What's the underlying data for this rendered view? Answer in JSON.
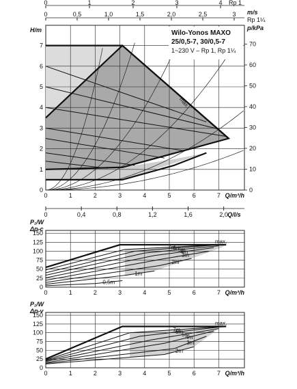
{
  "chart_data": [
    {
      "type": "line",
      "panel": "head",
      "title": [
        "Wilo-Yonos MAXO",
        "25/0,5-7, 30/0,5-7"
      ],
      "subtitle": "1~230 V – Rp 1, Rp 1¼",
      "xlabel": "Q/m³/h",
      "ylabel": "H/m",
      "ylabel_right": "p/kPa",
      "top_axis_1": {
        "unit": "v/m/s",
        "label": "m/s",
        "ticks": [
          "0",
          "1",
          "2",
          "3",
          "4"
        ],
        "extra": "Rp 1"
      },
      "top_axis_2": {
        "unit": "m/s",
        "ticks": [
          "0",
          "0,5",
          "1,0",
          "1,5",
          "2,0",
          "2,5",
          "3"
        ],
        "extra": "Rp 1¼"
      },
      "bottom_axis_2": {
        "unit": "Q/l/s",
        "label": "Q/l/s",
        "ticks": [
          "0",
          "0,4",
          "0,8",
          "1,2",
          "1,6",
          "2,0"
        ]
      },
      "x_ticks": [
        "0",
        "1",
        "2",
        "3",
        "4",
        "5",
        "6",
        "7"
      ],
      "y_ticks": [
        "0",
        "1",
        "2",
        "3",
        "4",
        "5",
        "6",
        "7"
      ],
      "y_right_ticks": [
        "0",
        "10",
        "20",
        "30",
        "40",
        "50",
        "60",
        "70"
      ],
      "xlim": [
        0,
        8
      ],
      "ylim": [
        0,
        7.5
      ],
      "envelope": {
        "x": [
          0,
          0,
          3.1,
          7.4,
          3.1,
          0
        ],
        "y": [
          0.5,
          3.5,
          7.0,
          2.5,
          1.1,
          1.0
        ]
      },
      "light_region": {
        "x": [
          0,
          0,
          3.1,
          3.1,
          0
        ],
        "y": [
          3.5,
          7.0,
          7.0,
          1.1,
          1.0
        ]
      },
      "max_label": "max.",
      "series": [
        {
          "x": [
            0,
            3.1,
            7.4
          ],
          "y": [
            7.0,
            7.0,
            2.5
          ]
        },
        {
          "x": [
            0,
            6.5
          ],
          "y": [
            6.0,
            3.3
          ]
        },
        {
          "x": [
            0,
            7.0
          ],
          "y": [
            5.0,
            2.95
          ]
        },
        {
          "x": [
            0,
            7.3
          ],
          "y": [
            4.0,
            2.6
          ]
        },
        {
          "x": [
            0,
            5.6
          ],
          "y": [
            3.0,
            1.9
          ]
        },
        {
          "x": [
            0,
            4.8
          ],
          "y": [
            2.5,
            1.55
          ]
        },
        {
          "x": [
            0,
            3.6
          ],
          "y": [
            1.8,
            1.2
          ]
        },
        {
          "x": [
            0,
            2.5
          ],
          "y": [
            1.4,
            1.05
          ]
        },
        {
          "x": [
            0,
            3.1,
            5.2,
            6.5
          ],
          "y": [
            0.5,
            0.5,
            1.2,
            1.8
          ]
        }
      ],
      "system_curves": [
        {
          "k": 0.03
        },
        {
          "k": 0.06
        },
        {
          "k": 0.12
        },
        {
          "k": 0.25
        },
        {
          "k": 0.55
        },
        {
          "k": 1.3
        }
      ]
    },
    {
      "type": "line",
      "panel": "power-dp-c",
      "ylabel": [
        "P₁/W",
        "Δp-c"
      ],
      "xlabel": "Q/m³/h",
      "x_ticks": [
        "0",
        "1",
        "2",
        "3",
        "4",
        "5",
        "6",
        "7"
      ],
      "y_ticks": [
        "0",
        "25",
        "50",
        "75",
        "100",
        "125",
        "150"
      ],
      "xlim": [
        0,
        8
      ],
      "ylim": [
        0,
        150
      ],
      "max_label": "max.",
      "series": [
        {
          "name": "max.",
          "x": [
            0,
            3,
            7.3
          ],
          "y": [
            55,
            118,
            118
          ]
        },
        {
          "name": "7m",
          "x": [
            0,
            3.2,
            7.0
          ],
          "y": [
            48,
            105,
            118
          ]
        },
        {
          "name": "6m",
          "x": [
            0,
            3.6,
            7.0
          ],
          "y": [
            40,
            100,
            118
          ]
        },
        {
          "name": "5m",
          "x": [
            0,
            4.0,
            7.0
          ],
          "y": [
            33,
            95,
            115
          ]
        },
        {
          "name": "4m",
          "x": [
            0,
            4.4,
            6.8
          ],
          "y": [
            26,
            88,
            110
          ]
        },
        {
          "name": "3m",
          "x": [
            0,
            4.7,
            6.6
          ],
          "y": [
            19,
            78,
            100
          ]
        },
        {
          "name": "2m",
          "x": [
            0,
            4.6,
            5.9
          ],
          "y": [
            13,
            60,
            80
          ]
        },
        {
          "name": "1m",
          "x": [
            0,
            3.1,
            4.4
          ],
          "y": [
            8,
            32,
            45
          ]
        },
        {
          "name": "0,5m",
          "x": [
            0,
            2.0,
            3.1
          ],
          "y": [
            4,
            10,
            18
          ]
        }
      ]
    },
    {
      "type": "line",
      "panel": "power-dp-v",
      "ylabel": [
        "P₁/W",
        "Δp-v"
      ],
      "xlabel": "Q/m³/h",
      "x_ticks": [
        "0",
        "1",
        "2",
        "3",
        "4",
        "5",
        "6",
        "7"
      ],
      "y_ticks": [
        "0",
        "25",
        "50",
        "75",
        "100",
        "125",
        "150"
      ],
      "xlim": [
        0,
        8
      ],
      "ylim": [
        0,
        150
      ],
      "max_label": "max.",
      "series": [
        {
          "name": "max.",
          "x": [
            0,
            3.1,
            7.3
          ],
          "y": [
            25,
            118,
            118
          ]
        },
        {
          "name": "7m",
          "x": [
            0,
            3.4,
            7.2
          ],
          "y": [
            22,
            100,
            118
          ]
        },
        {
          "name": "6m",
          "x": [
            0,
            3.8,
            7.0
          ],
          "y": [
            20,
            90,
            116
          ]
        },
        {
          "name": "5m",
          "x": [
            0,
            4.3,
            7.0
          ],
          "y": [
            18,
            80,
            112
          ]
        },
        {
          "name": "4m",
          "x": [
            0,
            4.8,
            6.8
          ],
          "y": [
            15,
            70,
            105
          ]
        },
        {
          "name": "3m",
          "x": [
            0,
            5.2,
            6.5
          ],
          "y": [
            13,
            55,
            90
          ]
        },
        {
          "name": "2m",
          "x": [
            0,
            4.8,
            6.0
          ],
          "y": [
            11,
            38,
            60
          ]
        }
      ]
    }
  ]
}
